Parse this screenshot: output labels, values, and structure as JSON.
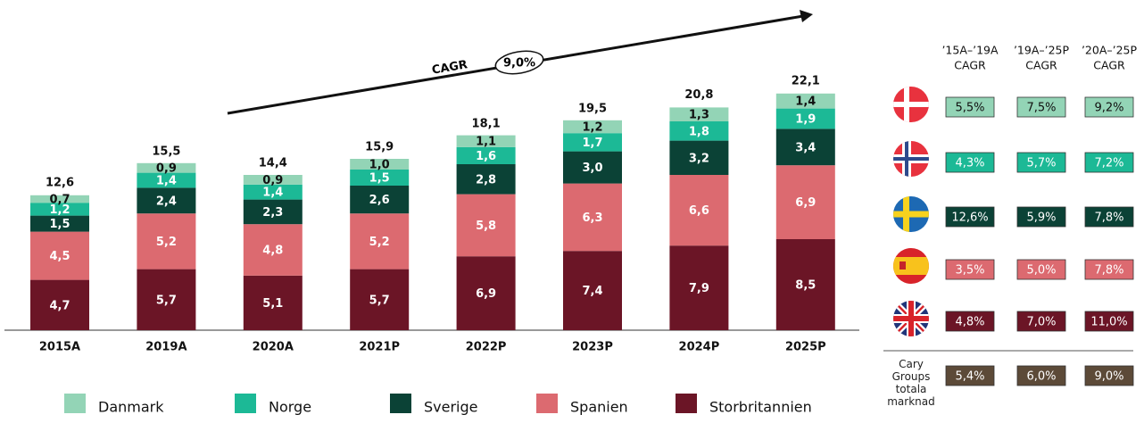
{
  "chart_data": {
    "type": "stacked_bar",
    "categories": [
      "2015A",
      "2019A",
      "2020A",
      "2021P",
      "2022P",
      "2023P",
      "2024P",
      "2025P"
    ],
    "series": [
      {
        "name": "Danmark",
        "color": "#93d4b6",
        "values": [
          0.7,
          0.9,
          0.9,
          1.0,
          1.1,
          1.2,
          1.3,
          1.4
        ],
        "value_labels": [
          "0,7",
          "0,9",
          "0,9",
          "1,0",
          "1,1",
          "1,2",
          "1,3",
          "1,4"
        ]
      },
      {
        "name": "Norge",
        "color": "#1cb996",
        "values": [
          1.2,
          1.4,
          1.4,
          1.5,
          1.6,
          1.7,
          1.8,
          1.9
        ],
        "value_labels": [
          "1,2",
          "1,4",
          "1,4",
          "1,5",
          "1,6",
          "1,7",
          "1,8",
          "1,9"
        ]
      },
      {
        "name": "Sverige",
        "color": "#0b4236",
        "values": [
          1.5,
          2.4,
          2.3,
          2.6,
          2.8,
          3.0,
          3.2,
          3.4
        ],
        "value_labels": [
          "1,5",
          "2,4",
          "2,3",
          "2,6",
          "2,8",
          "3,0",
          "3,2",
          "3,4"
        ]
      },
      {
        "name": "Spanien",
        "color": "#dc6a70",
        "values": [
          4.5,
          5.2,
          4.8,
          5.2,
          5.8,
          6.3,
          6.6,
          6.9
        ],
        "value_labels": [
          "4,5",
          "5,2",
          "4,8",
          "5,2",
          "5,8",
          "6,3",
          "6,6",
          "6,9"
        ]
      },
      {
        "name": "Storbritannien",
        "color": "#6b1526",
        "values": [
          4.7,
          5.7,
          5.1,
          5.7,
          6.9,
          7.4,
          7.9,
          8.5
        ],
        "value_labels": [
          "4,7",
          "5,7",
          "5,1",
          "5,7",
          "6,9",
          "7,4",
          "7,9",
          "8,5"
        ]
      }
    ],
    "totals": [
      12.6,
      15.5,
      14.4,
      15.9,
      18.1,
      19.5,
      20.8,
      22.1
    ],
    "totals_labels": [
      "12,6",
      "15,5",
      "14,4",
      "15,9",
      "18,1",
      "19,5",
      "20,8",
      "22,1"
    ],
    "annotations": [
      "CAGR",
      "9,0%"
    ]
  },
  "table": {
    "headers": [
      [
        "’15A–’19A",
        "CAGR"
      ],
      [
        "’19A–’25P",
        "CAGR"
      ],
      [
        "’20A–’25P",
        "CAGR"
      ]
    ],
    "rows": [
      {
        "color": "#93d4b6",
        "values": [
          "5,5%",
          "7,5%",
          "9,2%"
        ]
      },
      {
        "color": "#1cb996",
        "values": [
          "4,3%",
          "5,7%",
          "7,2%"
        ]
      },
      {
        "color": "#0b4236",
        "values": [
          "12,6%",
          "5,9%",
          "7,8%"
        ]
      },
      {
        "color": "#dc6a70",
        "values": [
          "3,5%",
          "5,0%",
          "7,8%"
        ]
      },
      {
        "color": "#6b1526",
        "values": [
          "4,8%",
          "7,0%",
          "11,0%"
        ]
      },
      {
        "label": "Cary Groups totala marknad",
        "color": "#5c4a38",
        "values": [
          "5,4%",
          "6,0%",
          "9,0%"
        ]
      }
    ]
  }
}
